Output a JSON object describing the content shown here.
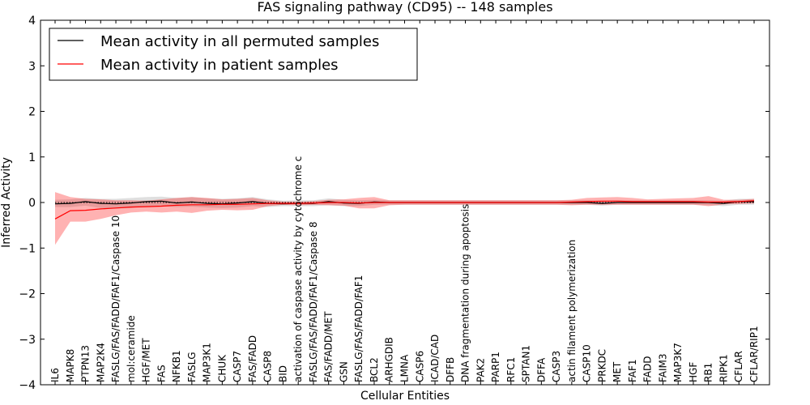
{
  "chart_data": {
    "type": "line",
    "title": "FAS signaling pathway (CD95) -- 148 samples",
    "xlabel": "Cellular Entities",
    "ylabel": "Inferred Activity",
    "ylim": [
      -4,
      4
    ],
    "yticks": [
      -4,
      -3,
      -2,
      -1,
      0,
      1,
      2,
      3,
      4
    ],
    "ytick_labels": [
      "−4",
      "−3",
      "−2",
      "−1",
      "0",
      "1",
      "2",
      "3",
      "4"
    ],
    "legend_position": "top-left",
    "categories": [
      "IL6",
      "MAPK8",
      "PTPN13",
      "MAP2K4",
      "FASLG/FAS/FADD/FAF1/Caspase 10",
      "mol:ceramide",
      "HGF/MET",
      "FAS",
      "NFKB1",
      "FASLG",
      "MAP3K1",
      "CHUK",
      "CASP7",
      "FAS/FADD",
      "CASP8",
      "BID",
      "activation of caspase activity by cytochrome c",
      "FASLG/FAS/FADD/FAF1/Caspase 8",
      "FAS/FADD/MET",
      "GSN",
      "FASLG/FAS/FADD/FAF1",
      "BCL2",
      "ARHGDIB",
      "LMNA",
      "CASP6",
      "ICAD/CAD",
      "DFFB",
      "DNA fragmentation during apoptosis",
      "PAK2",
      "PARP1",
      "RFC1",
      "SPTAN1",
      "DFFA",
      "CASP3",
      "actin filament polymerization",
      "CASP10",
      "PRKDC",
      "MET",
      "FAF1",
      "FADD",
      "FAIM3",
      "MAP3K7",
      "HGF",
      "RB1",
      "RIPK1",
      "CFLAR",
      "CFLAR/RIP1"
    ],
    "series": [
      {
        "name": "Mean activity in all permuted samples",
        "color": "#000000",
        "values": [
          -0.03,
          -0.02,
          0.02,
          -0.02,
          -0.03,
          -0.01,
          0.02,
          0.03,
          -0.01,
          0.01,
          -0.02,
          -0.03,
          -0.01,
          0.02,
          -0.02,
          -0.03,
          -0.02,
          -0.02,
          0.02,
          -0.01,
          -0.02,
          0.01,
          0.0,
          0.0,
          0.0,
          0.0,
          0.0,
          0.0,
          0.0,
          0.0,
          0.0,
          0.0,
          0.0,
          0.0,
          0.0,
          0.0,
          -0.02,
          0.0,
          0.0,
          0.0,
          0.0,
          0.0,
          0.0,
          0.0,
          -0.02,
          0.02,
          0.02
        ],
        "band_low": [
          -0.1,
          -0.1,
          -0.07,
          -0.12,
          -0.13,
          -0.12,
          -0.08,
          -0.08,
          -0.1,
          -0.09,
          -0.11,
          -0.12,
          -0.11,
          -0.08,
          -0.1,
          -0.08,
          -0.08,
          -0.08,
          -0.06,
          -0.08,
          -0.08,
          -0.05,
          -0.05,
          -0.05,
          -0.05,
          -0.05,
          -0.05,
          -0.05,
          -0.05,
          -0.05,
          -0.05,
          -0.05,
          -0.05,
          -0.05,
          -0.05,
          -0.05,
          -0.07,
          -0.05,
          -0.05,
          -0.05,
          -0.05,
          -0.05,
          -0.05,
          -0.06,
          -0.08,
          -0.05,
          -0.05
        ],
        "band_high": [
          0.06,
          0.07,
          0.1,
          0.08,
          0.08,
          0.1,
          0.12,
          0.13,
          0.1,
          0.12,
          0.09,
          0.08,
          0.09,
          0.12,
          0.07,
          0.04,
          0.05,
          0.05,
          0.09,
          0.06,
          0.05,
          0.06,
          0.05,
          0.05,
          0.05,
          0.05,
          0.05,
          0.05,
          0.05,
          0.05,
          0.05,
          0.05,
          0.05,
          0.05,
          0.05,
          0.05,
          0.04,
          0.05,
          0.05,
          0.05,
          0.05,
          0.05,
          0.05,
          0.05,
          0.04,
          0.08,
          0.08
        ]
      },
      {
        "name": "Mean activity in patient samples",
        "color": "#ff0000",
        "values": [
          -0.36,
          -0.18,
          -0.17,
          -0.14,
          -0.12,
          -0.1,
          -0.09,
          -0.08,
          -0.06,
          -0.05,
          -0.05,
          -0.04,
          -0.04,
          -0.03,
          -0.02,
          -0.02,
          -0.02,
          -0.01,
          0.0,
          0.0,
          -0.01,
          0.0,
          0.0,
          0.0,
          0.0,
          0.0,
          0.0,
          0.0,
          0.0,
          0.0,
          0.0,
          0.0,
          0.0,
          0.0,
          0.01,
          0.02,
          0.03,
          0.03,
          0.02,
          0.02,
          0.02,
          0.02,
          0.02,
          0.01,
          0.01,
          0.02,
          0.04
        ],
        "band_low": [
          -0.93,
          -0.42,
          -0.42,
          -0.36,
          -0.28,
          -0.22,
          -0.2,
          -0.22,
          -0.2,
          -0.23,
          -0.18,
          -0.16,
          -0.17,
          -0.16,
          -0.08,
          -0.05,
          -0.06,
          -0.05,
          -0.06,
          -0.07,
          -0.13,
          -0.13,
          -0.06,
          -0.05,
          -0.05,
          -0.05,
          -0.05,
          -0.05,
          -0.05,
          -0.05,
          -0.05,
          -0.05,
          -0.05,
          -0.05,
          -0.06,
          -0.05,
          -0.05,
          -0.05,
          -0.05,
          -0.05,
          -0.05,
          -0.05,
          -0.05,
          -0.08,
          -0.04,
          -0.03,
          -0.02
        ],
        "band_high": [
          0.23,
          0.12,
          0.08,
          0.07,
          0.05,
          0.05,
          0.04,
          0.07,
          0.1,
          0.12,
          0.1,
          0.07,
          0.08,
          0.1,
          0.05,
          0.02,
          0.02,
          0.03,
          0.06,
          0.07,
          0.1,
          0.12,
          0.05,
          0.05,
          0.05,
          0.05,
          0.05,
          0.05,
          0.05,
          0.05,
          0.05,
          0.05,
          0.05,
          0.05,
          0.06,
          0.1,
          0.11,
          0.12,
          0.1,
          0.07,
          0.08,
          0.09,
          0.1,
          0.14,
          0.06,
          0.06,
          0.08
        ]
      }
    ]
  }
}
